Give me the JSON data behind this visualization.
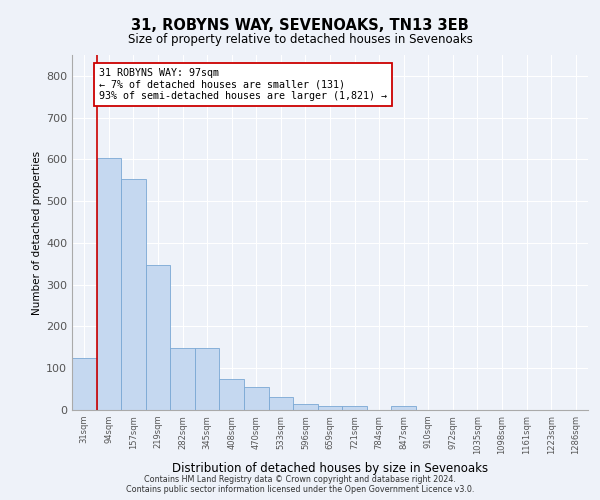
{
  "title": "31, ROBYNS WAY, SEVENOAKS, TN13 3EB",
  "subtitle": "Size of property relative to detached houses in Sevenoaks",
  "xlabel": "Distribution of detached houses by size in Sevenoaks",
  "ylabel": "Number of detached properties",
  "categories": [
    "31sqm",
    "94sqm",
    "157sqm",
    "219sqm",
    "282sqm",
    "345sqm",
    "408sqm",
    "470sqm",
    "533sqm",
    "596sqm",
    "659sqm",
    "721sqm",
    "784sqm",
    "847sqm",
    "910sqm",
    "972sqm",
    "1035sqm",
    "1098sqm",
    "1161sqm",
    "1223sqm",
    "1286sqm"
  ],
  "values": [
    125,
    603,
    553,
    347,
    148,
    148,
    75,
    55,
    30,
    15,
    10,
    10,
    0,
    10,
    0,
    0,
    0,
    0,
    0,
    0,
    0
  ],
  "bar_color": "#c5d8f0",
  "bar_edge_color": "#7aa8d4",
  "highlight_bar_index": 1,
  "highlight_color": "#cc0000",
  "annotation_text": "31 ROBYNS WAY: 97sqm\n← 7% of detached houses are smaller (131)\n93% of semi-detached houses are larger (1,821) →",
  "annotation_box_color": "#ffffff",
  "annotation_box_edge_color": "#cc0000",
  "ylim": [
    0,
    850
  ],
  "yticks": [
    0,
    100,
    200,
    300,
    400,
    500,
    600,
    700,
    800
  ],
  "footer_line1": "Contains HM Land Registry data © Crown copyright and database right 2024.",
  "footer_line2": "Contains public sector information licensed under the Open Government Licence v3.0.",
  "background_color": "#eef2f9",
  "grid_color": "#ffffff",
  "fig_width": 6.0,
  "fig_height": 5.0,
  "fig_dpi": 100
}
